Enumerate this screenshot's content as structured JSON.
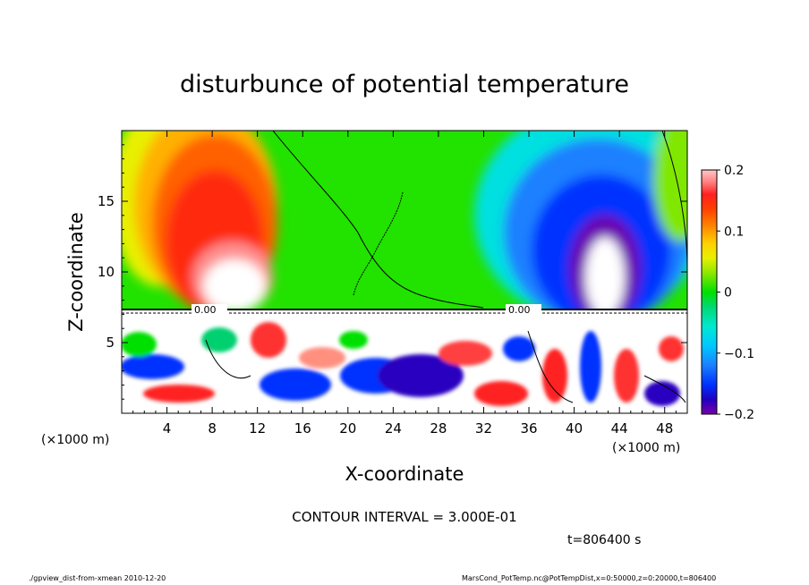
{
  "chart_data": {
    "type": "heatmap",
    "title": "disturbunce of potential temperature",
    "xlabel": "X-coordinate",
    "ylabel": "Z-coordinate",
    "x_unit": "(×1000 m)",
    "z_unit": "(×1000 m)",
    "xlim": [
      0,
      50
    ],
    "ylim": [
      0,
      20
    ],
    "x_ticks": [
      4,
      8,
      12,
      16,
      20,
      24,
      28,
      32,
      36,
      40,
      44,
      48
    ],
    "y_ticks": [
      5,
      10,
      15
    ],
    "colorbar": {
      "range": [
        -0.2,
        0.2
      ],
      "tick_values": [
        0.2,
        0.1,
        0,
        -0.1,
        -0.2
      ],
      "tick_labels": [
        "0.2",
        "0.1",
        "0",
        "−0.1",
        "−0.2"
      ]
    },
    "contour_labels": [
      "0.00",
      "0.00"
    ],
    "contour_interval_text": "CONTOUR INTERVAL = 3.000E-01",
    "time_text": "t=806400 s",
    "footer_left": "./gpview_dist-from-xmean  2010-12-20",
    "footer_right": "MarsCond_PotTemp.nc@PotTempDist,x=0:50000,z=0:20000,t=806400",
    "colors": {
      "colormap": [
        "#8a00b0",
        "#2a00d0",
        "#0040ff",
        "#1a80ff",
        "#00c0ff",
        "#00e0e0",
        "#00d080",
        "#00e000",
        "#80e800",
        "#d0e800",
        "#f0f000",
        "#ffc000",
        "#ff8000",
        "#ff4000",
        "#ff2020",
        "#ff8080",
        "#ffc0c0",
        "#ffffff"
      ]
    }
  }
}
